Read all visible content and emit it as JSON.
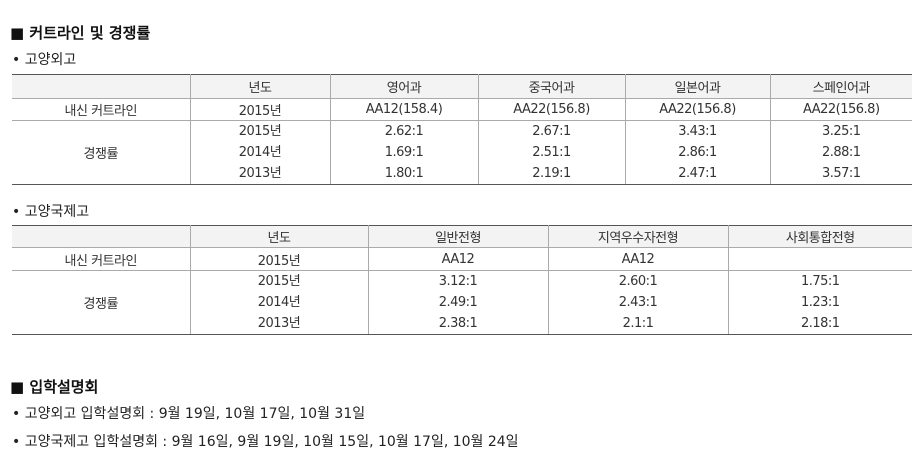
{
  "cutoff": {
    "title": "■ 커트라인 및 경쟁률",
    "schools": [
      {
        "name": "• 고양외고",
        "columns": [
          "년도",
          "영어과",
          "중국어과",
          "일본어과",
          "스페인어과"
        ],
        "naesin": {
          "label": "내신 커트라인",
          "year": "2015년",
          "values": [
            "AA12(158.4)",
            "AA22(156.8)",
            "AA22(156.8)",
            "AA22(156.8)"
          ]
        },
        "competition": {
          "label": "경쟁률",
          "rows": [
            {
              "year": "2015년",
              "values": [
                "2.62:1",
                "2.67:1",
                "3.43:1",
                "3.25:1"
              ]
            },
            {
              "year": "2014년",
              "values": [
                "1.69:1",
                "2.51:1",
                "2.86:1",
                "2.88:1"
              ]
            },
            {
              "year": "2013년",
              "values": [
                "1.80:1",
                "2.19:1",
                "2.47:1",
                "3.57:1"
              ]
            }
          ]
        }
      },
      {
        "name": "• 고양국제고",
        "columns": [
          "년도",
          "일반전형",
          "지역우수자전형",
          "사회통합전형"
        ],
        "naesin": {
          "label": "내신 커트라인",
          "year": "2015년",
          "values": [
            "AA12",
            "AA12",
            null
          ]
        },
        "competition": {
          "label": "경쟁률",
          "rows": [
            {
              "year": "2015년",
              "values": [
                "3.12:1",
                "2.60:1",
                "1.75:1"
              ]
            },
            {
              "year": "2014년",
              "values": [
                "2.49:1",
                "2.43:1",
                "1.23:1"
              ]
            },
            {
              "year": "2013년",
              "values": [
                "2.38:1",
                "2.1:1",
                "2.18:1"
              ]
            }
          ]
        }
      }
    ]
  },
  "info": {
    "title": "■ 입학설명회",
    "lines": [
      "• 고양외고 입학설명회 : 9월 19일, 10월 17일, 10월 31일",
      "• 고양국제고 입학설명회 : 9월 16일, 9월 19일, 10월 15일, 10월 17일, 10월 24일"
    ]
  }
}
